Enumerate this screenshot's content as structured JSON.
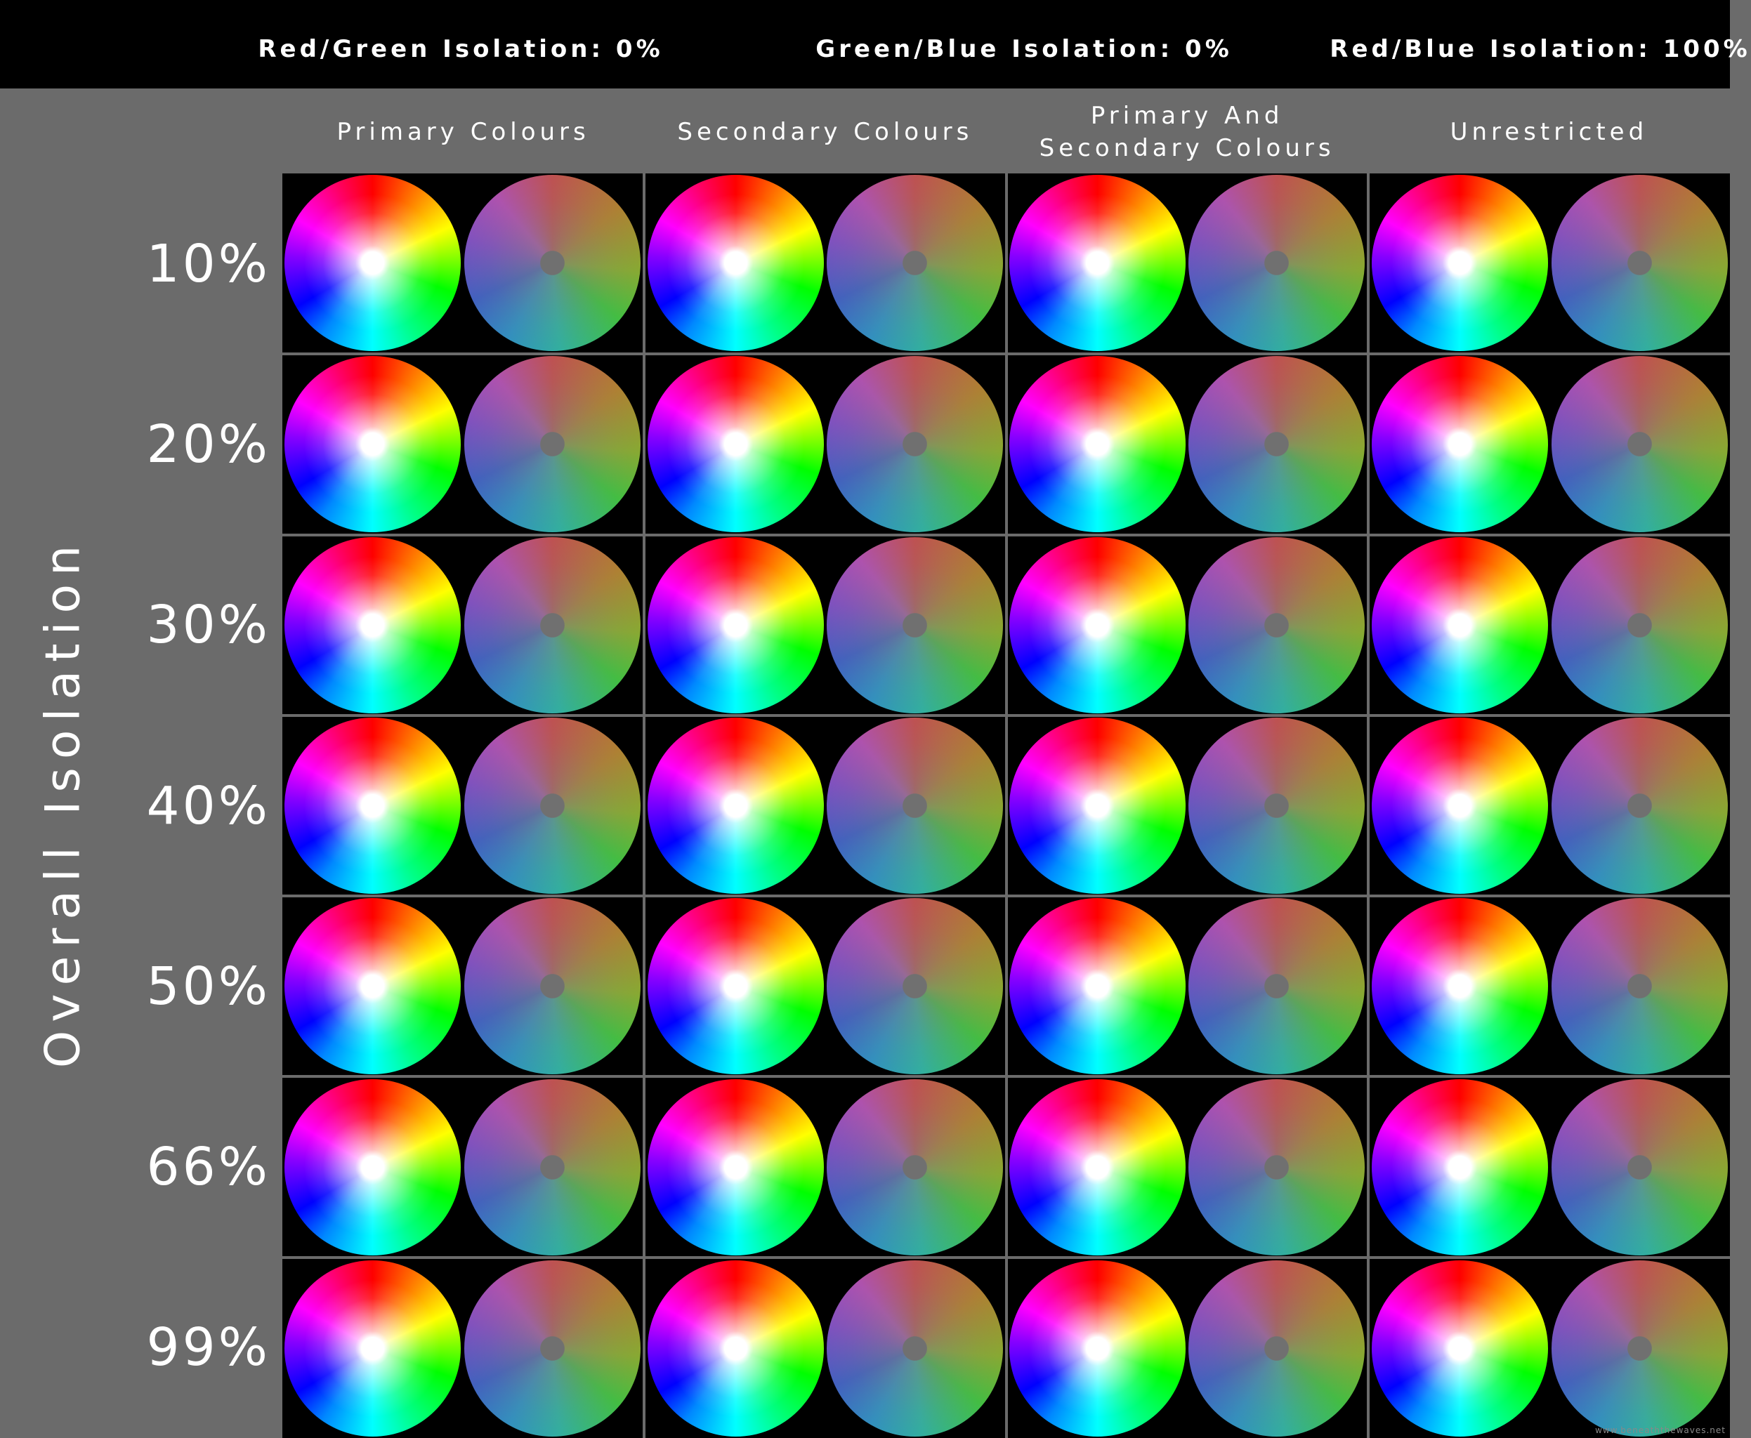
{
  "header": {
    "isolation_labels": [
      "Red/Green Isolation: 0%",
      "Green/Blue Isolation: 0%",
      "Red/Blue Isolation: 100%"
    ]
  },
  "columns": [
    "Primary Colours",
    "Secondary Colours",
    "Primary And\nSecondary Colours",
    "Unrestricted"
  ],
  "rows": [
    "10%",
    "20%",
    "30%",
    "40%",
    "50%",
    "66%",
    "99%"
  ],
  "axis_title": "Overall Isolation",
  "watermark": "www.beneaththewaves.net"
}
